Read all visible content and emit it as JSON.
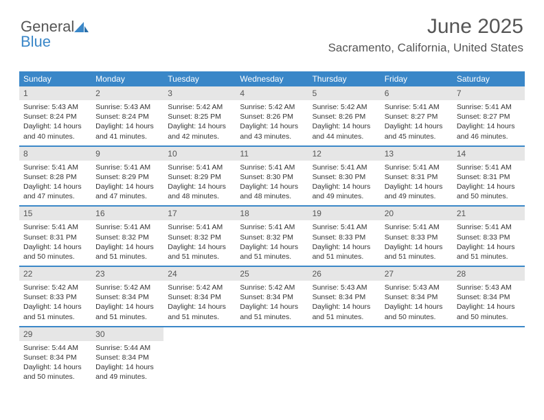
{
  "brand": {
    "part1": "General",
    "part2": "Blue"
  },
  "title": "June 2025",
  "location": "Sacramento, California, United States",
  "colors": {
    "accent": "#3a87c8",
    "daynum_bg": "#e6e6e6",
    "text": "#333333",
    "muted": "#555555",
    "background": "#ffffff"
  },
  "day_headers": [
    "Sunday",
    "Monday",
    "Tuesday",
    "Wednesday",
    "Thursday",
    "Friday",
    "Saturday"
  ],
  "weeks": [
    [
      {
        "n": "1",
        "sr": "5:43 AM",
        "ss": "8:24 PM",
        "dl": "14 hours and 40 minutes."
      },
      {
        "n": "2",
        "sr": "5:43 AM",
        "ss": "8:24 PM",
        "dl": "14 hours and 41 minutes."
      },
      {
        "n": "3",
        "sr": "5:42 AM",
        "ss": "8:25 PM",
        "dl": "14 hours and 42 minutes."
      },
      {
        "n": "4",
        "sr": "5:42 AM",
        "ss": "8:26 PM",
        "dl": "14 hours and 43 minutes."
      },
      {
        "n": "5",
        "sr": "5:42 AM",
        "ss": "8:26 PM",
        "dl": "14 hours and 44 minutes."
      },
      {
        "n": "6",
        "sr": "5:41 AM",
        "ss": "8:27 PM",
        "dl": "14 hours and 45 minutes."
      },
      {
        "n": "7",
        "sr": "5:41 AM",
        "ss": "8:27 PM",
        "dl": "14 hours and 46 minutes."
      }
    ],
    [
      {
        "n": "8",
        "sr": "5:41 AM",
        "ss": "8:28 PM",
        "dl": "14 hours and 47 minutes."
      },
      {
        "n": "9",
        "sr": "5:41 AM",
        "ss": "8:29 PM",
        "dl": "14 hours and 47 minutes."
      },
      {
        "n": "10",
        "sr": "5:41 AM",
        "ss": "8:29 PM",
        "dl": "14 hours and 48 minutes."
      },
      {
        "n": "11",
        "sr": "5:41 AM",
        "ss": "8:30 PM",
        "dl": "14 hours and 48 minutes."
      },
      {
        "n": "12",
        "sr": "5:41 AM",
        "ss": "8:30 PM",
        "dl": "14 hours and 49 minutes."
      },
      {
        "n": "13",
        "sr": "5:41 AM",
        "ss": "8:31 PM",
        "dl": "14 hours and 49 minutes."
      },
      {
        "n": "14",
        "sr": "5:41 AM",
        "ss": "8:31 PM",
        "dl": "14 hours and 50 minutes."
      }
    ],
    [
      {
        "n": "15",
        "sr": "5:41 AM",
        "ss": "8:31 PM",
        "dl": "14 hours and 50 minutes."
      },
      {
        "n": "16",
        "sr": "5:41 AM",
        "ss": "8:32 PM",
        "dl": "14 hours and 51 minutes."
      },
      {
        "n": "17",
        "sr": "5:41 AM",
        "ss": "8:32 PM",
        "dl": "14 hours and 51 minutes."
      },
      {
        "n": "18",
        "sr": "5:41 AM",
        "ss": "8:32 PM",
        "dl": "14 hours and 51 minutes."
      },
      {
        "n": "19",
        "sr": "5:41 AM",
        "ss": "8:33 PM",
        "dl": "14 hours and 51 minutes."
      },
      {
        "n": "20",
        "sr": "5:41 AM",
        "ss": "8:33 PM",
        "dl": "14 hours and 51 minutes."
      },
      {
        "n": "21",
        "sr": "5:41 AM",
        "ss": "8:33 PM",
        "dl": "14 hours and 51 minutes."
      }
    ],
    [
      {
        "n": "22",
        "sr": "5:42 AM",
        "ss": "8:33 PM",
        "dl": "14 hours and 51 minutes."
      },
      {
        "n": "23",
        "sr": "5:42 AM",
        "ss": "8:34 PM",
        "dl": "14 hours and 51 minutes."
      },
      {
        "n": "24",
        "sr": "5:42 AM",
        "ss": "8:34 PM",
        "dl": "14 hours and 51 minutes."
      },
      {
        "n": "25",
        "sr": "5:42 AM",
        "ss": "8:34 PM",
        "dl": "14 hours and 51 minutes."
      },
      {
        "n": "26",
        "sr": "5:43 AM",
        "ss": "8:34 PM",
        "dl": "14 hours and 51 minutes."
      },
      {
        "n": "27",
        "sr": "5:43 AM",
        "ss": "8:34 PM",
        "dl": "14 hours and 50 minutes."
      },
      {
        "n": "28",
        "sr": "5:43 AM",
        "ss": "8:34 PM",
        "dl": "14 hours and 50 minutes."
      }
    ],
    [
      {
        "n": "29",
        "sr": "5:44 AM",
        "ss": "8:34 PM",
        "dl": "14 hours and 50 minutes."
      },
      {
        "n": "30",
        "sr": "5:44 AM",
        "ss": "8:34 PM",
        "dl": "14 hours and 49 minutes."
      },
      null,
      null,
      null,
      null,
      null
    ]
  ],
  "labels": {
    "sunrise": "Sunrise:",
    "sunset": "Sunset:",
    "daylight": "Daylight:"
  }
}
